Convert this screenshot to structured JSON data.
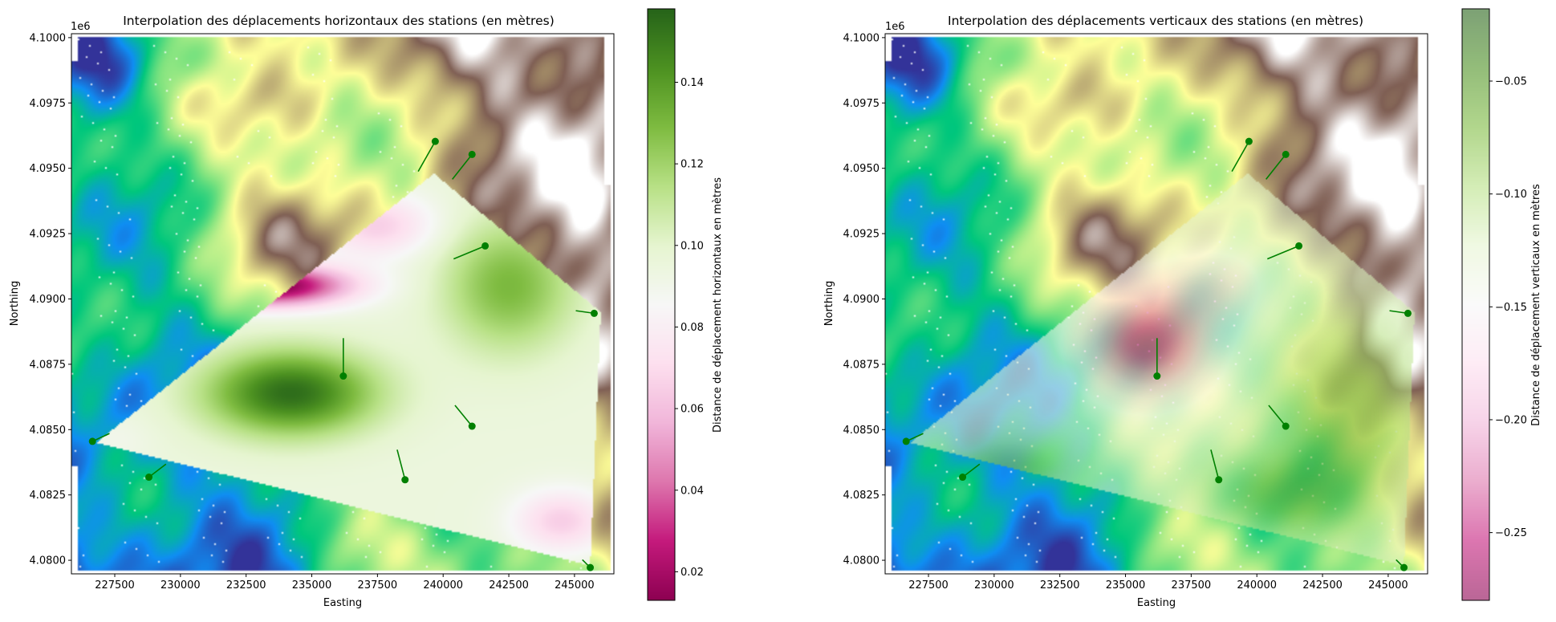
{
  "chart_data": [
    {
      "type": "heatmap",
      "title": "Interpolation des déplacements horizontaux des stations (en mètres)",
      "xlabel": "Easting",
      "ylabel": "Northing",
      "y_offset_label": "1e6",
      "xlim": [
        225850,
        246500
      ],
      "ylim": [
        4.07948,
        4.10015
      ],
      "x_ticks": [
        227500,
        230000,
        232500,
        235000,
        237500,
        240000,
        242500,
        245000
      ],
      "x_tick_labels": [
        "227500",
        "230000",
        "232500",
        "235000",
        "237500",
        "240000",
        "242500",
        "245000"
      ],
      "y_ticks": [
        4.08,
        4.0825,
        4.085,
        4.0875,
        4.09,
        4.0925,
        4.095,
        4.0975,
        4.1
      ],
      "y_tick_labels": [
        "4.0800",
        "4.0825",
        "4.0850",
        "4.0875",
        "4.0900",
        "4.0925",
        "4.0950",
        "4.0975",
        "4.1000"
      ],
      "colorbar": {
        "label": "Distance de déplacement horizontaux en mètres",
        "range": [
          0.013,
          0.158
        ],
        "ticks": [
          0.02,
          0.04,
          0.06,
          0.08,
          0.1,
          0.12,
          0.14
        ],
        "tick_labels": [
          "0.02",
          "0.04",
          "0.06",
          "0.08",
          "0.10",
          "0.12",
          "0.14"
        ],
        "colormap": "PiYG",
        "alpha": 1.0
      },
      "field": {
        "base": 0.095,
        "blobs": [
          {
            "x": 234200,
            "y": 4.0864,
            "amp": 0.06,
            "sx": 3200,
            "sy": 0.0016
          },
          {
            "x": 233500,
            "y": 4.0905,
            "amp": -0.085,
            "sx": 3000,
            "sy": 0.0008
          },
          {
            "x": 237500,
            "y": 4.0928,
            "amp": -0.03,
            "sx": 2200,
            "sy": 0.0012
          },
          {
            "x": 242500,
            "y": 4.0905,
            "amp": 0.035,
            "sx": 2500,
            "sy": 0.0025
          },
          {
            "x": 244500,
            "y": 4.0815,
            "amp": -0.03,
            "sx": 1800,
            "sy": 0.0012
          },
          {
            "x": 227500,
            "y": 4.0846,
            "amp": -0.005,
            "sx": 1500,
            "sy": 0.001
          }
        ]
      },
      "stations": [
        {
          "x": 239700,
          "y": 4.09603,
          "dx": -650,
          "dy": -0.00115
        },
        {
          "x": 241100,
          "y": 4.09553,
          "dx": -750,
          "dy": -0.00095
        },
        {
          "x": 241600,
          "y": 4.09203,
          "dx": -1200,
          "dy": -0.0005
        },
        {
          "x": 245750,
          "y": 4.08945,
          "dx": -700,
          "dy": 0.0001
        },
        {
          "x": 236200,
          "y": 4.08705,
          "dx": 0,
          "dy": 0.00145
        },
        {
          "x": 241100,
          "y": 4.08513,
          "dx": -650,
          "dy": 0.0008
        },
        {
          "x": 238550,
          "y": 4.08308,
          "dx": -300,
          "dy": 0.00115
        },
        {
          "x": 226650,
          "y": 4.08455,
          "dx": 650,
          "dy": 0.0003
        },
        {
          "x": 228800,
          "y": 4.08318,
          "dx": 650,
          "dy": 0.0005
        },
        {
          "x": 245600,
          "y": 4.07972,
          "dx": -300,
          "dy": 0.0003
        }
      ]
    },
    {
      "type": "heatmap",
      "title": "Interpolation des déplacements verticaux des stations (en mètres)",
      "xlabel": "Easting",
      "ylabel": "Northing",
      "y_offset_label": "1e6",
      "xlim": [
        225850,
        246500
      ],
      "ylim": [
        4.07948,
        4.10015
      ],
      "x_ticks": [
        227500,
        230000,
        232500,
        235000,
        237500,
        240000,
        242500,
        245000
      ],
      "x_tick_labels": [
        "227500",
        "230000",
        "232500",
        "235000",
        "237500",
        "240000",
        "242500",
        "245000"
      ],
      "y_ticks": [
        4.08,
        4.0825,
        4.085,
        4.0875,
        4.09,
        4.0925,
        4.095,
        4.0975,
        4.1
      ],
      "y_tick_labels": [
        "4.0800",
        "4.0825",
        "4.0850",
        "4.0875",
        "4.0900",
        "4.0925",
        "4.0950",
        "4.0975",
        "4.1000"
      ],
      "colorbar": {
        "label": "Distance de déplacement verticaux en mètres",
        "range": [
          -0.28,
          -0.018
        ],
        "ticks": [
          -0.25,
          -0.2,
          -0.15,
          -0.1,
          -0.05
        ],
        "tick_labels": [
          "−0.25",
          "−0.20",
          "−0.15",
          "−0.10",
          "−0.05"
        ],
        "colormap": "PiYG",
        "alpha": 0.6
      },
      "field": {
        "base": -0.12,
        "blobs": [
          {
            "x": 235800,
            "y": 4.0883,
            "amp": -0.14,
            "sx": 2600,
            "sy": 0.0022
          },
          {
            "x": 238500,
            "y": 4.0905,
            "amp": -0.05,
            "sx": 2000,
            "sy": 0.0015
          },
          {
            "x": 243500,
            "y": 4.0855,
            "amp": 0.06,
            "sx": 2500,
            "sy": 0.0035
          },
          {
            "x": 230500,
            "y": 4.0835,
            "amp": 0.05,
            "sx": 2200,
            "sy": 0.0012
          },
          {
            "x": 241000,
            "y": 4.0825,
            "amp": 0.05,
            "sx": 2500,
            "sy": 0.0015
          }
        ]
      },
      "stations": [
        {
          "x": 239700,
          "y": 4.09603,
          "dx": -650,
          "dy": -0.00115
        },
        {
          "x": 241100,
          "y": 4.09553,
          "dx": -750,
          "dy": -0.00095
        },
        {
          "x": 241600,
          "y": 4.09203,
          "dx": -1200,
          "dy": -0.0005
        },
        {
          "x": 245750,
          "y": 4.08945,
          "dx": -700,
          "dy": 0.0001
        },
        {
          "x": 236200,
          "y": 4.08705,
          "dx": 0,
          "dy": 0.00145
        },
        {
          "x": 241100,
          "y": 4.08513,
          "dx": -650,
          "dy": 0.0008
        },
        {
          "x": 238550,
          "y": 4.08308,
          "dx": -300,
          "dy": 0.00115
        },
        {
          "x": 226650,
          "y": 4.08455,
          "dx": 650,
          "dy": 0.0003
        },
        {
          "x": 228800,
          "y": 4.08318,
          "dx": 650,
          "dy": 0.0005
        },
        {
          "x": 245600,
          "y": 4.07972,
          "dx": -300,
          "dy": 0.0003
        }
      ]
    }
  ],
  "interpolation_zone": [
    [
      239650,
      4.0948
    ],
    [
      246000,
      4.0895
    ],
    [
      245600,
      4.0798
    ],
    [
      226800,
      4.0845
    ]
  ],
  "colors": {
    "station": "#008000",
    "terrain": [
      "#333399",
      "#0f8ef3",
      "#00c77c",
      "#7fe37f",
      "#fefe98",
      "#7f5f54",
      "#ffffff"
    ],
    "piyg": [
      "#8e0152",
      "#c51b7d",
      "#de77ae",
      "#f1b6da",
      "#fde0ef",
      "#f7f7f7",
      "#e6f5d0",
      "#b8e186",
      "#7fbc41",
      "#4d9221",
      "#276419"
    ]
  }
}
